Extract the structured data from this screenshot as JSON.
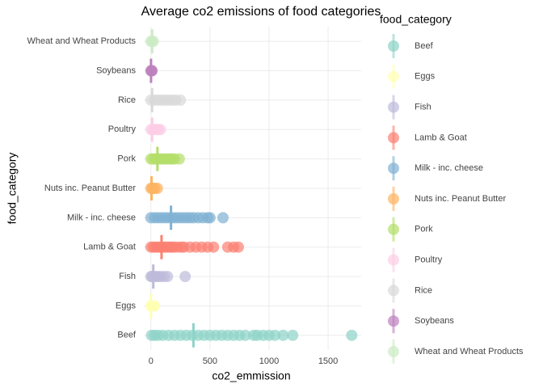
{
  "chart_data": {
    "type": "strip",
    "title": "Average co2 emissions of food categories",
    "x_label": "co2_emmission",
    "y_label": "food_category",
    "legend_title": "food_category",
    "xlim": [
      -60,
      1780
    ],
    "xticks": [
      0,
      500,
      1000,
      1500
    ],
    "grid": true,
    "series": [
      {
        "name": "Beef",
        "color": "#8dd3c7",
        "mean": 360,
        "values": [
          5,
          30,
          60,
          100,
          150,
          200,
          250,
          300,
          350,
          400,
          450,
          500,
          550,
          600,
          650,
          700,
          750,
          800,
          870,
          900,
          950,
          1000,
          1050,
          1120,
          1200,
          1700
        ]
      },
      {
        "name": "Eggs",
        "color": "#ffffb3",
        "mean": 0,
        "values": [
          0,
          5,
          10,
          15,
          20,
          25,
          30
        ]
      },
      {
        "name": "Fish",
        "color": "#bebada",
        "mean": 20,
        "values": [
          0,
          10,
          20,
          40,
          60,
          80,
          110,
          140,
          290
        ]
      },
      {
        "name": "Lamb & Goat",
        "color": "#fb8072",
        "mean": 90,
        "values": [
          0,
          20,
          40,
          60,
          80,
          100,
          120,
          140,
          160,
          180,
          200,
          230,
          260,
          280,
          330,
          380,
          430,
          480,
          530,
          650,
          700,
          740
        ]
      },
      {
        "name": "Milk - inc. cheese",
        "color": "#80b1d3",
        "mean": 170,
        "values": [
          0,
          30,
          60,
          90,
          120,
          150,
          180,
          210,
          240,
          270,
          300,
          330,
          360,
          400,
          440,
          480,
          500,
          610
        ]
      },
      {
        "name": "Nuts inc. Peanut Butter",
        "color": "#fdb462",
        "mean": 5,
        "values": [
          0,
          10,
          20,
          35,
          55
        ]
      },
      {
        "name": "Pork",
        "color": "#b3de69",
        "mean": 55,
        "values": [
          0,
          20,
          40,
          60,
          80,
          100,
          120,
          140,
          160,
          180,
          200,
          240
        ]
      },
      {
        "name": "Poultry",
        "color": "#fccde5",
        "mean": 10,
        "values": [
          0,
          15,
          30,
          50,
          65,
          80
        ]
      },
      {
        "name": "Rice",
        "color": "#d9d9d9",
        "mean": 10,
        "values": [
          0,
          30,
          60,
          90,
          120,
          150,
          180,
          210,
          250
        ]
      },
      {
        "name": "Soybeans",
        "color": "#bc80bd",
        "mean": 1,
        "values": [
          0,
          5,
          10
        ]
      },
      {
        "name": "Wheat and Wheat Products",
        "color": "#ccebc5",
        "mean": 10,
        "values": [
          0,
          10,
          20
        ]
      }
    ]
  }
}
